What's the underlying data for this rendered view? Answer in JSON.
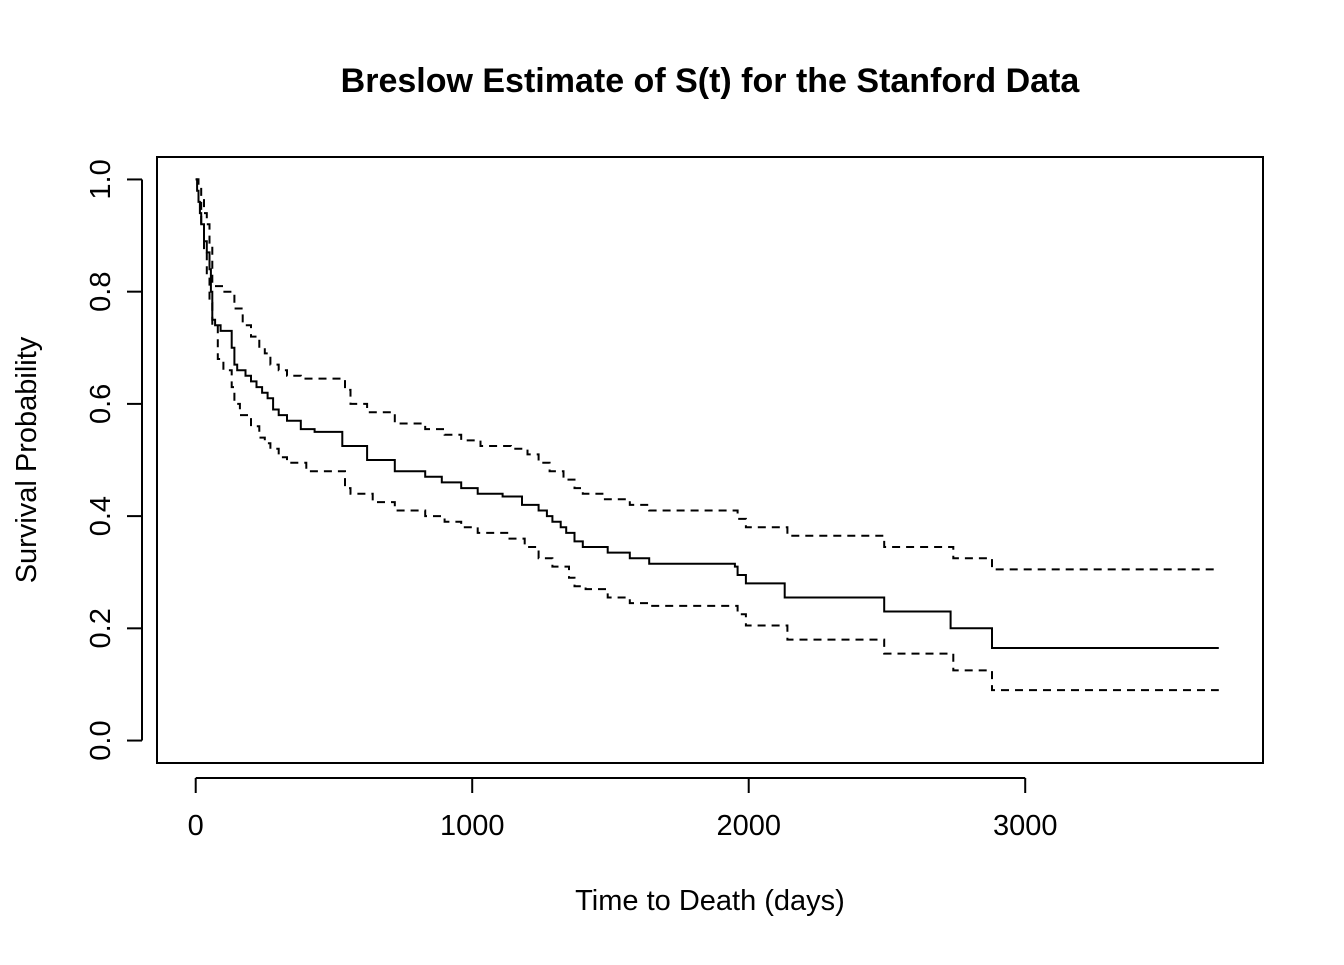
{
  "chart_data": {
    "type": "line",
    "title": "Breslow Estimate of S(t) for the Stanford Data",
    "xlabel": "Time to Death (days)",
    "ylabel": "Survival Probability",
    "xlim": [
      -140,
      3860
    ],
    "ylim": [
      -0.04,
      1.04
    ],
    "x_ticks": [
      0,
      1000,
      2000,
      3000
    ],
    "x_tick_labels": [
      "0",
      "1000",
      "2000",
      "3000"
    ],
    "y_ticks": [
      0.0,
      0.2,
      0.4,
      0.6,
      0.8,
      1.0
    ],
    "y_tick_labels": [
      "0.0",
      "0.2",
      "0.4",
      "0.6",
      "0.8",
      "1.0"
    ],
    "grid": false,
    "series": [
      {
        "style": "solid",
        "x": [
          0,
          5,
          10,
          15,
          20,
          30,
          40,
          50,
          55,
          60,
          70,
          90,
          110,
          130,
          140,
          150,
          180,
          200,
          220,
          240,
          260,
          280,
          300,
          330,
          380,
          430,
          530,
          550,
          620,
          720,
          830,
          890,
          960,
          1020,
          1110,
          1180,
          1240,
          1270,
          1290,
          1320,
          1340,
          1370,
          1400,
          1490,
          1570,
          1640,
          1950,
          1960,
          1990,
          2130,
          2490,
          2730,
          2880,
          3700
        ],
        "y": [
          1.0,
          0.98,
          0.96,
          0.94,
          0.92,
          0.89,
          0.87,
          0.84,
          0.8,
          0.75,
          0.74,
          0.73,
          0.73,
          0.7,
          0.67,
          0.66,
          0.65,
          0.64,
          0.63,
          0.62,
          0.61,
          0.59,
          0.58,
          0.57,
          0.555,
          0.55,
          0.525,
          0.525,
          0.5,
          0.48,
          0.47,
          0.46,
          0.45,
          0.44,
          0.435,
          0.42,
          0.41,
          0.4,
          0.39,
          0.38,
          0.37,
          0.355,
          0.345,
          0.335,
          0.325,
          0.315,
          0.31,
          0.295,
          0.28,
          0.255,
          0.23,
          0.2,
          0.165,
          0.165
        ]
      },
      {
        "style": "dashed",
        "x": [
          0,
          10,
          20,
          30,
          40,
          50,
          60,
          100,
          140,
          170,
          200,
          230,
          250,
          270,
          300,
          330,
          380,
          540,
          560,
          620,
          720,
          830,
          900,
          960,
          1030,
          1140,
          1200,
          1240,
          1280,
          1330,
          1370,
          1400,
          1480,
          1570,
          1640,
          1960,
          1990,
          2140,
          2490,
          2740,
          2880,
          3700
        ],
        "y": [
          1.0,
          0.99,
          0.97,
          0.94,
          0.92,
          0.88,
          0.81,
          0.8,
          0.77,
          0.74,
          0.72,
          0.7,
          0.69,
          0.67,
          0.66,
          0.65,
          0.645,
          0.625,
          0.6,
          0.585,
          0.565,
          0.555,
          0.545,
          0.535,
          0.525,
          0.52,
          0.51,
          0.495,
          0.48,
          0.465,
          0.45,
          0.44,
          0.43,
          0.42,
          0.41,
          0.395,
          0.38,
          0.365,
          0.345,
          0.325,
          0.305,
          0.305
        ]
      },
      {
        "style": "dashed",
        "x": [
          0,
          10,
          20,
          30,
          40,
          50,
          60,
          80,
          100,
          130,
          140,
          160,
          200,
          230,
          250,
          270,
          300,
          330,
          400,
          540,
          560,
          640,
          720,
          830,
          900,
          960,
          1020,
          1130,
          1190,
          1240,
          1290,
          1350,
          1370,
          1410,
          1490,
          1570,
          1640,
          1960,
          1990,
          2140,
          2490,
          2740,
          2880,
          3700
        ],
        "y": [
          1.0,
          0.96,
          0.92,
          0.87,
          0.83,
          0.78,
          0.74,
          0.68,
          0.66,
          0.63,
          0.6,
          0.58,
          0.56,
          0.54,
          0.53,
          0.52,
          0.505,
          0.495,
          0.48,
          0.45,
          0.44,
          0.425,
          0.41,
          0.4,
          0.39,
          0.38,
          0.37,
          0.36,
          0.345,
          0.325,
          0.31,
          0.29,
          0.275,
          0.27,
          0.255,
          0.245,
          0.24,
          0.225,
          0.205,
          0.18,
          0.155,
          0.125,
          0.09,
          0.09
        ]
      }
    ]
  }
}
